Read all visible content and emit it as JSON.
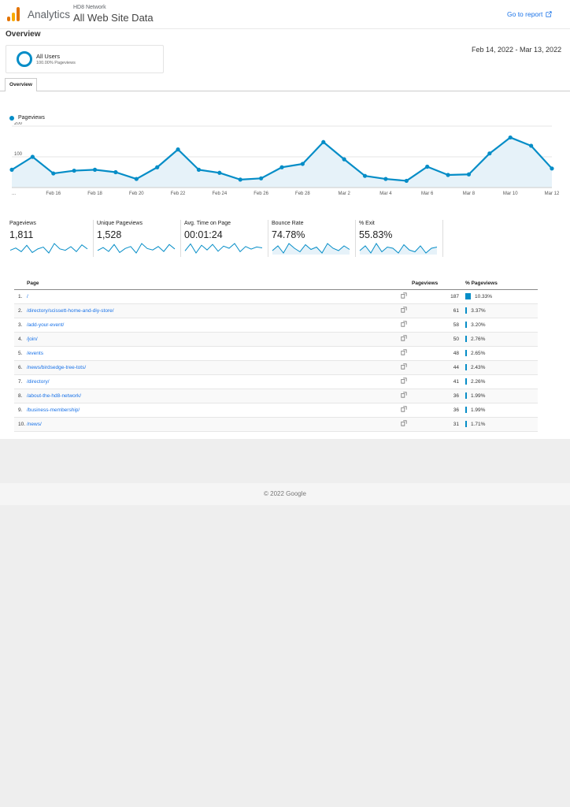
{
  "header": {
    "brand": "Analytics",
    "account": "HD8 Network",
    "property": "All Web Site Data",
    "goto_label": "Go to report"
  },
  "overview": {
    "title": "Overview",
    "segment": {
      "name": "All Users",
      "sub": "100.00% Pageviews"
    },
    "date_range": "Feb 14, 2022 - Mar 13, 2022",
    "tab": "Overview"
  },
  "colors": {
    "accent": "#058dc7",
    "link": "#1a73e8"
  },
  "chart_data": {
    "type": "area",
    "legend": "Pageviews",
    "y_ticks": [
      "200",
      "100"
    ],
    "ylim": [
      0,
      200
    ],
    "x_tick_labels": [
      "...",
      "Feb 16",
      "Feb 18",
      "Feb 20",
      "Feb 22",
      "Feb 24",
      "Feb 26",
      "Feb 28",
      "Mar 2",
      "Mar 4",
      "Mar 6",
      "Mar 8",
      "Mar 10",
      "Mar 12"
    ],
    "series": [
      {
        "name": "Pageviews",
        "values": [
          58,
          100,
          46,
          55,
          58,
          50,
          28,
          66,
          124,
          58,
          48,
          26,
          30,
          66,
          77,
          148,
          92,
          38,
          28,
          22,
          68,
          41,
          43,
          111,
          163,
          136,
          62
        ]
      }
    ]
  },
  "metrics": [
    {
      "label": "Pageviews",
      "value": "1,811",
      "spark": [
        55,
        60,
        52,
        66,
        50,
        58,
        62,
        49,
        70,
        58,
        55,
        63,
        52,
        67,
        58
      ]
    },
    {
      "label": "Unique Pageviews",
      "value": "1,528",
      "spark": [
        52,
        58,
        50,
        64,
        48,
        56,
        60,
        47,
        66,
        56,
        53,
        60,
        50,
        64,
        55
      ]
    },
    {
      "label": "Avg. Time on Page",
      "value": "00:01:24",
      "spark": [
        40,
        72,
        30,
        66,
        44,
        70,
        38,
        62,
        52,
        74,
        36,
        60,
        48,
        58,
        54
      ]
    },
    {
      "label": "Bounce Rate",
      "value": "74.78%",
      "spark": [
        58,
        62,
        56,
        64,
        60,
        57,
        63,
        59,
        61,
        56,
        64,
        60,
        58,
        62,
        59
      ]
    },
    {
      "label": "% Exit",
      "value": "55.83%",
      "spark": [
        54,
        62,
        50,
        66,
        52,
        60,
        58,
        50,
        64,
        55,
        52,
        62,
        50,
        58,
        60
      ]
    }
  ],
  "table": {
    "headers": {
      "page": "Page",
      "pageviews": "Pageviews",
      "pct": "% Pageviews"
    },
    "rows": [
      {
        "rank": "1.",
        "page": "/",
        "pageviews": "187",
        "pct": "10.33%",
        "share": 0.1033
      },
      {
        "rank": "2.",
        "page": "/directory/scissett-home-and-diy-store/",
        "pageviews": "61",
        "pct": "3.37%",
        "share": 0.0337
      },
      {
        "rank": "3.",
        "page": "/add-your-event/",
        "pageviews": "58",
        "pct": "3.20%",
        "share": 0.032
      },
      {
        "rank": "4.",
        "page": "/join/",
        "pageviews": "50",
        "pct": "2.76%",
        "share": 0.0276
      },
      {
        "rank": "5.",
        "page": "/events",
        "pageviews": "48",
        "pct": "2.65%",
        "share": 0.0265
      },
      {
        "rank": "6.",
        "page": "/news/birdsedge-tree-tots/",
        "pageviews": "44",
        "pct": "2.43%",
        "share": 0.0243
      },
      {
        "rank": "7.",
        "page": "/directory/",
        "pageviews": "41",
        "pct": "2.26%",
        "share": 0.0226
      },
      {
        "rank": "8.",
        "page": "/about-the-hd8-network/",
        "pageviews": "36",
        "pct": "1.99%",
        "share": 0.0199
      },
      {
        "rank": "9.",
        "page": "/business-membership/",
        "pageviews": "36",
        "pct": "1.99%",
        "share": 0.0199
      },
      {
        "rank": "10.",
        "page": "/news/",
        "pageviews": "31",
        "pct": "1.71%",
        "share": 0.0171
      }
    ]
  },
  "footer": {
    "text": "© 2022 Google"
  }
}
